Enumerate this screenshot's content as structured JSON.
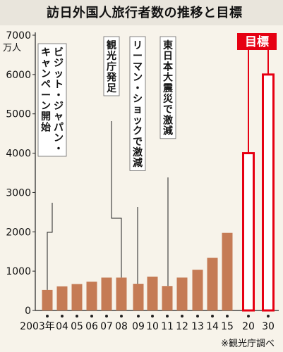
{
  "title": "訪日外国人旅行者数の推移と目標",
  "source_note": "※観光庁調べ",
  "chart_data": {
    "type": "bar",
    "unit_label": "万人",
    "ylim": [
      0,
      7000
    ],
    "yticks": [
      0,
      1000,
      2000,
      3000,
      4000,
      5000,
      6000,
      7000
    ],
    "grid": false,
    "categories": [
      "2003年",
      "04",
      "05",
      "06",
      "07",
      "08",
      "09",
      "10",
      "11",
      "12",
      "13",
      "14",
      "15",
      "20",
      "30"
    ],
    "values": [
      521,
      614,
      673,
      733,
      835,
      835,
      679,
      861,
      622,
      836,
      1036,
      1341,
      1974,
      4000,
      6000
    ],
    "bar_colors": {
      "actual": "#c57b55",
      "target": "#e60012"
    },
    "target_label": "目標",
    "annotations": [
      {
        "text": "ビジット・ジャパン・キャンペーン開始",
        "category_index": 0
      },
      {
        "text": "観光庁発足",
        "category_index": 5
      },
      {
        "text": "リーマン・ショックで激減",
        "category_index": 6
      },
      {
        "text": "東日本大震災で激減",
        "category_index": 8
      }
    ]
  }
}
